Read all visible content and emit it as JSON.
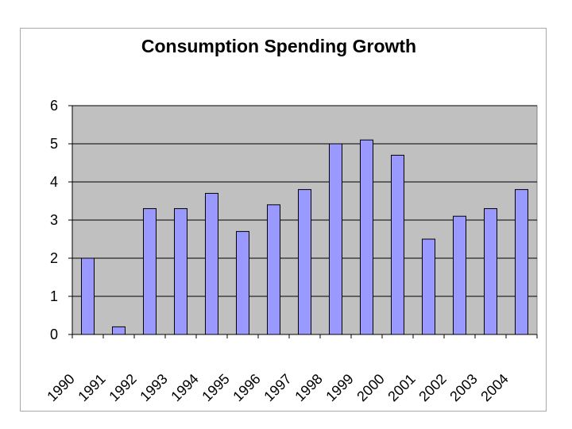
{
  "chart_data": {
    "type": "bar",
    "title": "Consumption Spending Growth",
    "xlabel": "",
    "ylabel": "",
    "categories": [
      "1990",
      "1991",
      "1992",
      "1993",
      "1994",
      "1995",
      "1996",
      "1997",
      "1998",
      "1999",
      "2000",
      "2001",
      "2002",
      "2003",
      "2004"
    ],
    "values": [
      2.0,
      0.2,
      3.3,
      3.3,
      3.7,
      2.7,
      3.4,
      3.8,
      5.0,
      5.1,
      4.7,
      2.5,
      3.1,
      3.3,
      3.8
    ],
    "ylim": [
      0,
      6
    ],
    "yticks": [
      "0",
      "1",
      "2",
      "3",
      "4",
      "5",
      "6"
    ],
    "grid": true,
    "legend": "none",
    "colors": {
      "bar_fill": "#9999ff",
      "bar_stroke": "#000000",
      "plot_background": "#c0c0c0",
      "gridline": "#000000"
    }
  }
}
